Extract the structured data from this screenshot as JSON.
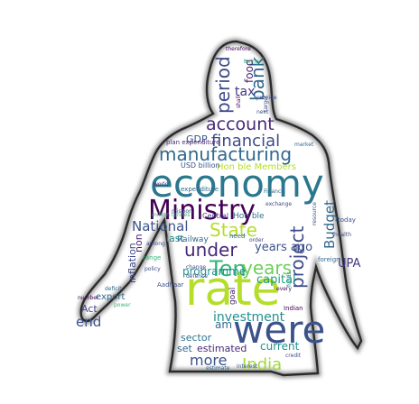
{
  "colors": {
    "outline": "#2b2b2b",
    "outline_shadow": "#9a9a9a",
    "background": "#ffffff"
  },
  "words": [
    {
      "text": "economy",
      "color": "#2a788e"
    },
    {
      "text": "Ministry",
      "color": "#440154"
    },
    {
      "text": "rate",
      "color": "#b5de2b"
    },
    {
      "text": "were",
      "color": "#3b528b"
    },
    {
      "text": "manufacturing",
      "color": "#31688e"
    },
    {
      "text": "financial",
      "color": "#3e4a89"
    },
    {
      "text": "account",
      "color": "#482878"
    },
    {
      "text": "period",
      "color": "#3e4989"
    },
    {
      "text": "bank",
      "color": "#31688e"
    },
    {
      "text": "tax",
      "color": "#443983"
    },
    {
      "text": "food",
      "color": "#481f70"
    },
    {
      "text": "State",
      "color": "#b5de2b"
    },
    {
      "text": "National",
      "color": "#3b528b"
    },
    {
      "text": "under",
      "color": "#482878"
    },
    {
      "text": "Ten",
      "color": "#35b779"
    },
    {
      "text": "years",
      "color": "#6ece58"
    },
    {
      "text": "years ago",
      "color": "#3b528b"
    },
    {
      "text": "project",
      "color": "#3e4a89"
    },
    {
      "text": "Budget",
      "color": "#31688e"
    },
    {
      "text": "UPA",
      "color": "#443983"
    },
    {
      "text": "programme",
      "color": "#21918c"
    },
    {
      "text": "capital",
      "color": "#1f9e89"
    },
    {
      "text": "investment",
      "color": "#21918c"
    },
    {
      "text": "India",
      "color": "#a0da39"
    },
    {
      "text": "more",
      "color": "#3b528b"
    },
    {
      "text": "estimated",
      "color": "#482878"
    },
    {
      "text": "current",
      "color": "#21918c"
    },
    {
      "text": "sector",
      "color": "#2c728e"
    },
    {
      "text": "set",
      "color": "#31688e"
    },
    {
      "text": "end",
      "color": "#3b528b"
    },
    {
      "text": "am",
      "color": "#31688e"
    },
    {
      "text": "Act",
      "color": "#404688"
    },
    {
      "text": "export",
      "color": "#31688e"
    },
    {
      "text": "inflation",
      "color": "#3e4989"
    },
    {
      "text": "non",
      "color": "#481f70"
    },
    {
      "text": "GDP",
      "color": "#3b528b"
    },
    {
      "text": "last",
      "color": "#21918c"
    },
    {
      "text": "Railway",
      "color": "#31688e"
    },
    {
      "text": "Hon ble",
      "color": "#2c728e"
    },
    {
      "text": "Central",
      "color": "#3e4989"
    },
    {
      "text": "Hon ble Members",
      "color": "#b5de2b"
    },
    {
      "text": "USD billion",
      "color": "#3b528b"
    },
    {
      "text": "expenditure",
      "color": "#31688e"
    },
    {
      "text": "million tonnes",
      "color": "#35b779"
    },
    {
      "text": "plan expenditure",
      "color": "#482878"
    },
    {
      "text": "foreign",
      "color": "#31688e"
    },
    {
      "text": "today",
      "color": "#3b528b"
    },
    {
      "text": "Indian",
      "color": "#440154"
    },
    {
      "text": "need",
      "color": "#31688e"
    },
    {
      "text": "among",
      "color": "#3e4989"
    },
    {
      "text": "range",
      "color": "#35b779"
    },
    {
      "text": "change",
      "color": "#404688"
    },
    {
      "text": "defence",
      "color": "#3e4a89"
    },
    {
      "text": "Aadhaar",
      "color": "#3b528b"
    },
    {
      "text": "deficit",
      "color": "#31688e"
    },
    {
      "text": "number",
      "color": "#440154"
    },
    {
      "text": "goal",
      "color": "#482878"
    },
    {
      "text": "order",
      "color": "#3e4989"
    },
    {
      "text": "market",
      "color": "#31688e"
    },
    {
      "text": "therefore",
      "color": "#440154"
    },
    {
      "text": "being",
      "color": "#35b779"
    },
    {
      "text": "next",
      "color": "#3b528b"
    },
    {
      "text": "shall",
      "color": "#440154"
    },
    {
      "text": "provide",
      "color": "#3b528b"
    },
    {
      "text": "target",
      "color": "#3e4989"
    },
    {
      "text": "Finance",
      "color": "#31688e"
    },
    {
      "text": "exchange",
      "color": "#3e4989"
    },
    {
      "text": "funds",
      "color": "#21918c"
    },
    {
      "text": "credit",
      "color": "#3b528b"
    },
    {
      "text": "interest",
      "color": "#3b528b"
    },
    {
      "text": "estimate",
      "color": "#31688e"
    },
    {
      "text": "every",
      "color": "#440154"
    },
    {
      "text": "resource",
      "color": "#3b528b"
    },
    {
      "text": "health",
      "color": "#3e4a89"
    },
    {
      "text": "world",
      "color": "#481f70"
    },
    {
      "text": "policy",
      "color": "#3e4989"
    },
    {
      "text": "power",
      "color": "#35b779"
    },
    {
      "text": "mission",
      "color": "#3e4989"
    }
  ]
}
